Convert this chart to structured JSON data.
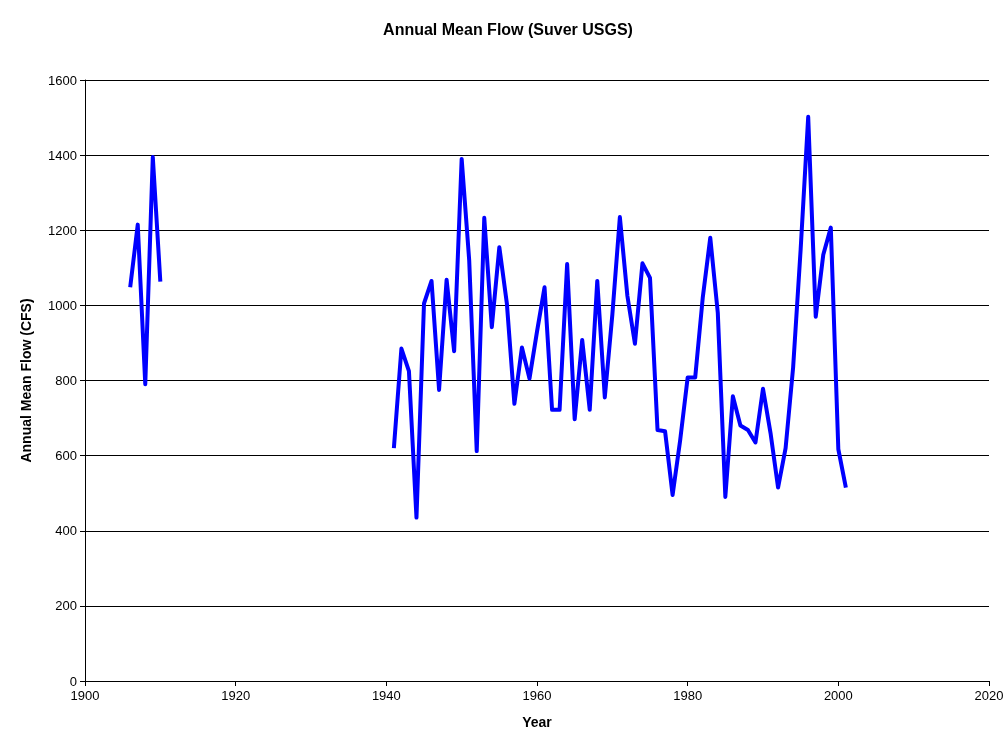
{
  "chart_data": {
    "type": "line",
    "title": "Annual Mean Flow (Suver USGS)",
    "xlabel": "Year",
    "ylabel": "Annual Mean Flow (CFS)",
    "x": [
      1906,
      1907,
      1908,
      1909,
      1910,
      1911,
      1941,
      1942,
      1943,
      1944,
      1945,
      1946,
      1947,
      1948,
      1949,
      1950,
      1951,
      1952,
      1953,
      1954,
      1955,
      1956,
      1957,
      1958,
      1959,
      1960,
      1961,
      1962,
      1963,
      1964,
      1965,
      1966,
      1967,
      1968,
      1969,
      1970,
      1971,
      1972,
      1973,
      1974,
      1975,
      1976,
      1977,
      1978,
      1979,
      1980,
      1981,
      1982,
      1983,
      1984,
      1985,
      1986,
      1987,
      1988,
      1989,
      1990,
      1991,
      1992,
      1993,
      1994,
      1995,
      1996,
      1997,
      1998,
      1999,
      2000,
      2001
    ],
    "series": [
      {
        "color": "#0000ff",
        "values": [
          1048,
          1215,
          790,
          1395,
          1063,
          null,
          620,
          885,
          825,
          435,
          1005,
          1065,
          775,
          1068,
          878,
          1390,
          1120,
          612,
          1233,
          942,
          1155,
          1005,
          738,
          888,
          805,
          930,
          1048,
          722,
          722,
          1110,
          697,
          908,
          722,
          1065,
          755,
          975,
          1235,
          1025,
          898,
          1112,
          1073,
          668,
          665,
          495,
          640,
          808,
          808,
          1020,
          1180,
          980,
          490,
          758,
          680,
          668,
          635,
          778,
          660,
          515,
          620,
          835,
          1150,
          1502,
          970,
          1135,
          1207,
          617,
          515
        ]
      }
    ],
    "xlim": [
      1900,
      2020
    ],
    "xticks": [
      1900,
      1920,
      1940,
      1960,
      1980,
      2000,
      2020
    ],
    "ylim": [
      0,
      1600
    ],
    "yticks": [
      0,
      200,
      400,
      600,
      800,
      1000,
      1200,
      1400,
      1600
    ],
    "grid": "y",
    "marker": "none",
    "line_style": "solid"
  }
}
